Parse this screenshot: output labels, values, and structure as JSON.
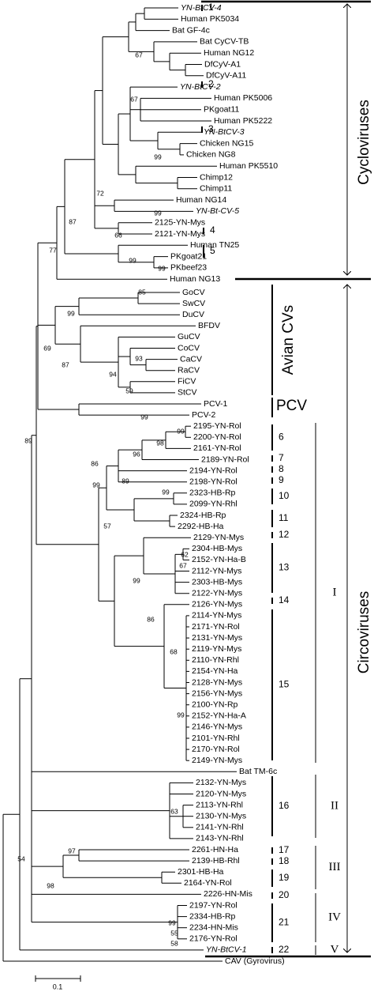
{
  "leaves": [
    "YN-BtCV-4",
    "Human PK5034",
    "Bat GF-4c",
    "Bat CyCV-TB",
    "Human NG12",
    "DfCyV-A1",
    "DfCyV-A11",
    "YN-BtCV-2",
    "Human PK5006",
    "PKgoat11",
    "Human PK5222",
    "YN-BtCV-3",
    "Chicken NG15",
    "Chicken NG8",
    "Human PK5510",
    "Chimp12",
    "Chimp11",
    "Human NG14",
    "YN-Bt-CV-5",
    "2125-YN-Mys",
    "2121-YN-Mys",
    "Human TN25",
    "PKgoat21",
    "PKbeef23",
    "Human NG13",
    "GoCV",
    "SwCV",
    "DuCV",
    "BFDV",
    "GuCV",
    "CoCV",
    "CaCV",
    "RaCV",
    "FiCV",
    "StCV",
    "PCV-1",
    "PCV-2",
    "2195-YN-Rol",
    "2200-YN-Rol",
    "2161-YN-Rol",
    "2189-YN-Rol",
    "2194-YN-Rol",
    "2198-YN-Rol",
    "2323-HB-Rp",
    "2099-YN-Rhl",
    "2324-HB-Rp",
    "2292-HB-Ha",
    "2129-YN-Mys",
    "2304-HB-Mys",
    "2152-YN-Ha-B",
    "2112-YN-Mys",
    "2303-HB-Mys",
    "2122-YN-Mys",
    "2126-YN-Mys",
    "2114-YN-Mys",
    "2171-YN-Rol",
    "2131-YN-Mys",
    "2119-YN-Mys",
    "2110-YN-Rhl",
    "2154-YN-Ha",
    "2128-YN-Mys",
    "2156-YN-Mys",
    "2100-YN-Rp",
    "2152-YN-Ha-A",
    "2146-YN-Mys",
    "2101-YN-Rhl",
    "2170-YN-Rol",
    "2149-YN-Mys",
    "Bat TM-6c",
    "2132-YN-Mys",
    "2120-YN-Mys",
    "2113-YN-Rhl",
    "2130-YN-Mys",
    "2141-YN-Rhl",
    "2143-YN-Rhl",
    "2261-HN-Ha",
    "2139-HB-Rhl",
    "2301-HB-Ha",
    "2164-YN-Rol",
    "2226-HN-Mis",
    "2197-YN-Rol",
    "2334-HB-Rp",
    "2234-HN-Mis",
    "2176-YN-Rol",
    "YN-BtCV-1",
    "CAV (Gyrovirus)"
  ],
  "bootstrap": [
    67,
    67,
    99,
    99,
    72,
    66,
    87,
    77,
    99,
    99,
    85,
    99,
    69,
    87,
    94,
    93,
    59,
    99,
    89,
    99,
    98,
    96,
    86,
    99,
    89,
    99,
    57,
    62,
    67,
    99,
    86,
    68,
    99,
    63,
    54,
    97,
    98,
    99,
    55,
    58
  ],
  "clades": [
    1,
    2,
    3,
    4,
    5,
    6,
    7,
    8,
    9,
    10,
    11,
    12,
    13,
    14,
    15,
    16,
    17,
    18,
    19,
    20,
    21,
    22
  ],
  "groups": {
    "cycloviruses": "Cycloviruses",
    "circoviruses": "Circoviruses",
    "avian": "Avian CVs",
    "pcv": "PCV"
  },
  "subgroups": [
    "I",
    "II",
    "III",
    "IV",
    "V"
  ],
  "scale": "0.1"
}
